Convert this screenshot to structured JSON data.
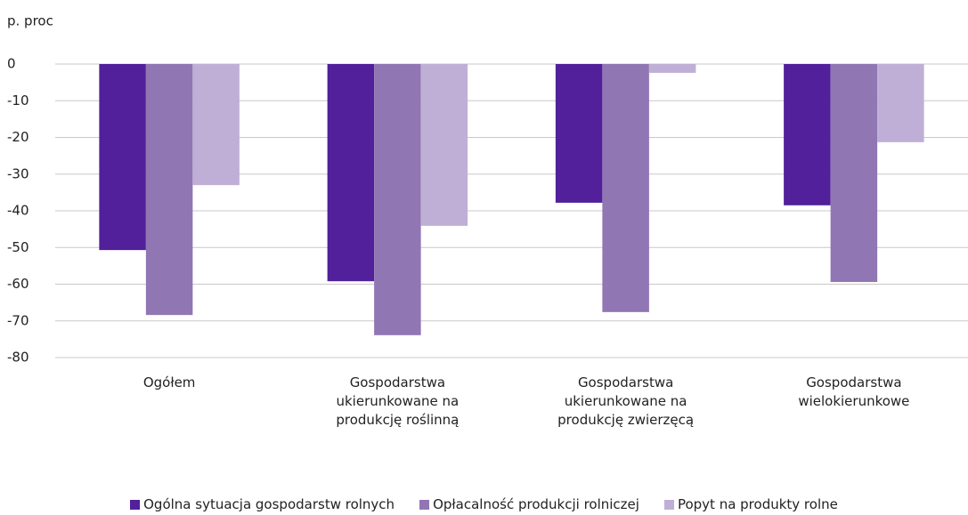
{
  "chart_data": {
    "type": "bar",
    "y_label": "p. proc",
    "categories": [
      "Ogółem",
      "Gospodarstwa ukierunkowane na produkcję roślinną",
      "Gospodarstwa ukierunkowane na produkcję zwierzęcą",
      "Gospodarstwa wielokierunkowe"
    ],
    "series": [
      {
        "name": "Ogólna sytuacja gospodarstw rolnych",
        "color": "#51209a",
        "values": [
          -50.7,
          -59.2,
          -37.8,
          -38.5
        ]
      },
      {
        "name": "Opłacalność produkcji rolniczej",
        "color": "#9176b4",
        "values": [
          -68.4,
          -73.9,
          -67.6,
          -59.4
        ]
      },
      {
        "name": "Popyt na produkty rolne",
        "color": "#bfafd6",
        "values": [
          -33.0,
          -44.1,
          -2.4,
          -21.3
        ]
      }
    ],
    "ylim": [
      -80,
      0
    ],
    "yticks": [
      0,
      -10,
      -20,
      -30,
      -40,
      -50,
      -60,
      -70,
      -80
    ],
    "grid": true,
    "legend": "bottom"
  }
}
